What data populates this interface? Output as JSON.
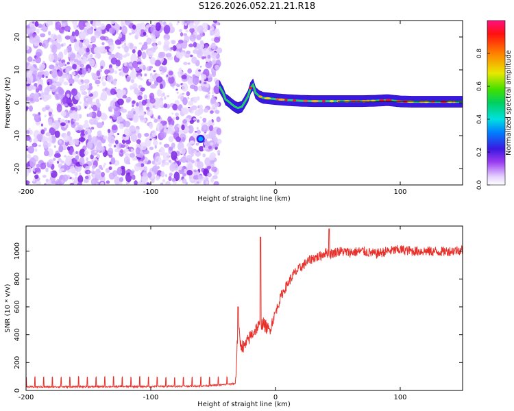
{
  "title": "S126.2026.052.21.21.R18",
  "chart_data": [
    {
      "type": "heatmap",
      "name": "spectrogram",
      "xlabel": "Height of straight line (km)",
      "ylabel": "Frequency (Hz)",
      "xlim": [
        -200,
        150
      ],
      "ylim": [
        -25,
        25
      ],
      "xticks": [
        -200,
        -100,
        0,
        100
      ],
      "yticks": [
        -20,
        -10,
        0,
        10,
        20
      ],
      "noise_region_x": [
        -200,
        -45
      ],
      "signal_ridge": {
        "x": [
          -45,
          -42,
          -40,
          -38,
          -35,
          -32,
          -30,
          -27,
          -25,
          -22,
          -20,
          -18,
          -16,
          -13,
          -10,
          -5,
          0,
          10,
          20,
          30,
          40,
          50,
          60,
          70,
          80,
          90,
          100,
          110,
          120,
          130,
          140,
          150
        ],
        "y": [
          5,
          3,
          1,
          0.5,
          -0.5,
          -1.3,
          -1.6,
          -1.2,
          0,
          2,
          4.5,
          5.5,
          3,
          2,
          1.5,
          1.3,
          1.1,
          0.8,
          0.6,
          0.5,
          0.5,
          0.5,
          0.5,
          0.5,
          0.6,
          0.8,
          0.4,
          0.3,
          0.3,
          0.3,
          0.3,
          0.3
        ]
      },
      "isolated_peak": {
        "x": -60,
        "y": -11
      },
      "colorbar": {
        "label": "Normalized spectral amplitude",
        "range": [
          0,
          1
        ],
        "ticks": [
          "0.0",
          "0.2",
          "0.4",
          "0.6",
          "0.8"
        ]
      }
    },
    {
      "type": "line",
      "name": "snr",
      "xlabel": "Height of straight line (km)",
      "ylabel": "SNR (10 * v/v)",
      "xlim": [
        -200,
        150
      ],
      "ylim": [
        0,
        1180
      ],
      "xticks": [
        -200,
        -100,
        0,
        100
      ],
      "yticks": [
        0,
        200,
        400,
        600,
        800,
        1000
      ],
      "series": [
        {
          "name": "SNR",
          "color": "#e8302a",
          "x": [
            -200,
            -180,
            -160,
            -140,
            -120,
            -100,
            -80,
            -60,
            -45,
            -32,
            -30,
            -28,
            -25,
            -20,
            -15,
            -10,
            -5,
            0,
            5,
            10,
            15,
            20,
            25,
            30,
            35,
            40,
            45,
            50,
            60,
            70,
            80,
            90,
            100,
            110,
            120,
            130,
            140,
            150
          ],
          "y": [
            25,
            26,
            27,
            27,
            28,
            28,
            30,
            32,
            38,
            50,
            480,
            330,
            310,
            390,
            450,
            480,
            430,
            560,
            690,
            770,
            840,
            880,
            920,
            950,
            960,
            990,
            980,
            1000,
            990,
            1000,
            980,
            1000,
            1010,
            1000,
            1000,
            995,
            1000,
            1010
          ]
        }
      ],
      "spikes": [
        {
          "x": -12,
          "y": 1100
        },
        {
          "x": -30,
          "y": 600
        },
        {
          "x": 43,
          "y": 1160
        }
      ],
      "periodic_spike": {
        "start": -200,
        "end": -30,
        "period": 7,
        "height": 90
      }
    }
  ]
}
